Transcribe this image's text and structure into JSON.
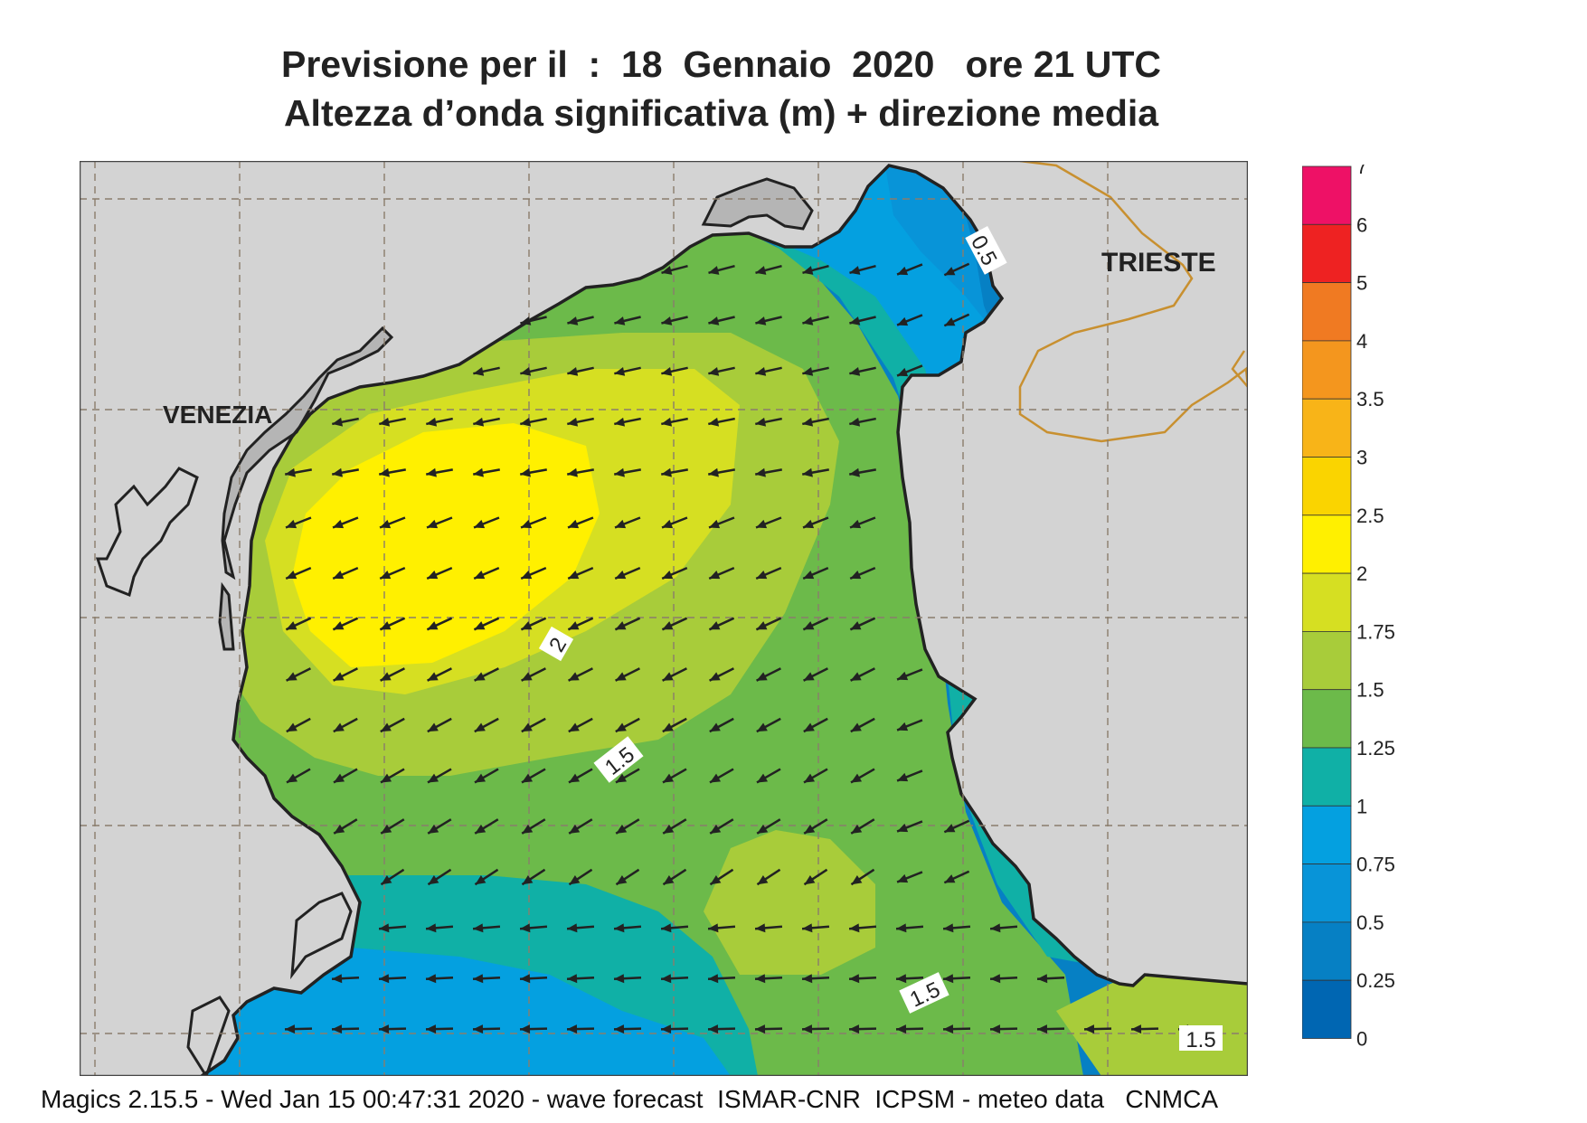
{
  "title_line1": "Previsione per il  :  18  Gennaio  2020   ore 21 UTC",
  "title_line2": "Altezza d’onda significativa (m) + direzione media",
  "place_labels": {
    "venezia": "VENEZIA",
    "trieste": "TRIESTE"
  },
  "contour_labels": [
    "0.5",
    "2",
    "1.5",
    "1.5",
    "1.5"
  ],
  "legend": {
    "levels": [
      "7",
      "6",
      "5",
      "4",
      "3.5",
      "3",
      "2.5",
      "2",
      "1.75",
      "1.5",
      "1.25",
      "1",
      "0.75",
      "0.5",
      "0.25",
      "0"
    ],
    "colors": [
      "#ee1166",
      "#ee2222",
      "#f07a22",
      "#f4961e",
      "#f8b418",
      "#fad400",
      "#fff000",
      "#d6df22",
      "#a8cc3a",
      "#6cba4a",
      "#10b0a6",
      "#04a0e0",
      "#0894d8",
      "#0680c4",
      "#0066b2"
    ]
  },
  "colors": {
    "land": "#d3d3d3",
    "coast": "#222222",
    "border": "#c89030",
    "arrow": "#222222"
  },
  "footer": "Magics 2.15.5 - Wed Jan 15 00:47:31 2020 - wave forecast  ISMAR-CNR  ICPSM - meteo data   CNMCA"
}
